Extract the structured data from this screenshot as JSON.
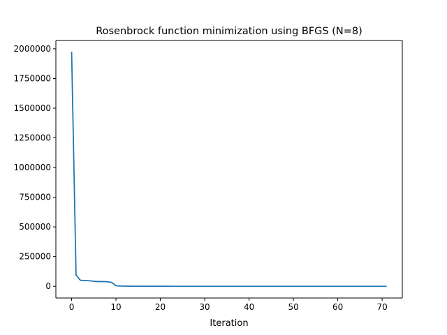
{
  "chart_data": {
    "type": "line",
    "title": "Rosenbrock function minimization using BFGS (N=8)",
    "xlabel": "Iteration",
    "ylabel": "",
    "xlim": [
      -3.55,
      74.55
    ],
    "ylim": [
      -98600,
      2070000
    ],
    "xticks": [
      0,
      10,
      20,
      30,
      40,
      50,
      60,
      70
    ],
    "xtick_labels": [
      "0",
      "10",
      "20",
      "30",
      "40",
      "50",
      "60",
      "70"
    ],
    "yticks": [
      0,
      250000,
      500000,
      750000,
      1000000,
      1250000,
      1500000,
      1750000,
      2000000
    ],
    "ytick_labels": [
      "0",
      "250000",
      "500000",
      "750000",
      "1000000",
      "1250000",
      "1500000",
      "1750000",
      "2000000"
    ],
    "grid": false,
    "legend": "none",
    "series": [
      {
        "color": "#1f77b4",
        "x": [
          0,
          1,
          2,
          3,
          4,
          5,
          6,
          7,
          8,
          9,
          10,
          11,
          12,
          13,
          14,
          15,
          16,
          17,
          18,
          19,
          20,
          21,
          22,
          23,
          24,
          25,
          26,
          27,
          28,
          29,
          30,
          31,
          32,
          33,
          34,
          35,
          36,
          37,
          38,
          39,
          40,
          41,
          42,
          43,
          44,
          45,
          46,
          47,
          48,
          49,
          50,
          51,
          52,
          53,
          54,
          55,
          56,
          57,
          58,
          59,
          60,
          61,
          62,
          63,
          64,
          65,
          66,
          67,
          68,
          69,
          70,
          71
        ],
        "y": [
          1975000,
          95000,
          50000,
          49000,
          47000,
          42000,
          40000,
          40000,
          39000,
          33000,
          5000,
          2500,
          1500,
          900,
          600,
          400,
          300,
          200,
          150,
          100,
          80,
          60,
          50,
          40,
          30,
          20,
          15,
          10,
          8,
          6,
          5,
          4,
          3,
          2,
          2,
          1,
          1,
          1,
          1,
          0,
          0,
          0,
          0,
          0,
          0,
          0,
          0,
          0,
          0,
          0,
          0,
          0,
          0,
          0,
          0,
          0,
          0,
          0,
          0,
          0,
          0,
          0,
          0,
          0,
          0,
          0,
          0,
          0,
          0,
          0,
          0,
          0
        ]
      }
    ]
  }
}
